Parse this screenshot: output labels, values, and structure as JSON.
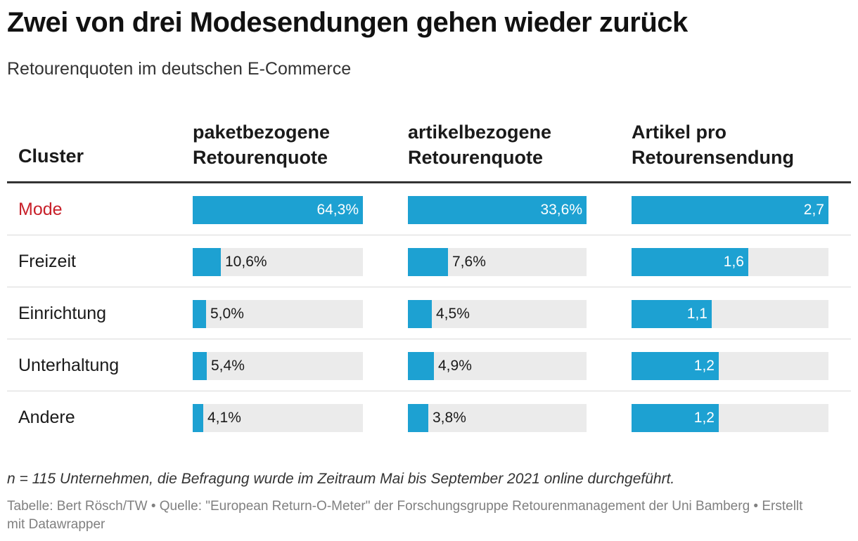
{
  "title": "Zwei von drei Modesendungen gehen wieder zurück",
  "subtitle": "Retourenquoten im deutschen E-Commerce",
  "chart_data": {
    "type": "table",
    "title": "Zwei von drei Modesendungen gehen wieder zurück",
    "subtitle": "Retourenquoten im deutschen E-Commerce",
    "row_header": "Cluster",
    "columns": [
      {
        "key": "paket",
        "label_line1": "paketbezogene",
        "label_line2": "Retourenquote",
        "max": 64.3
      },
      {
        "key": "artikel",
        "label_line1": "artikelbezogene",
        "label_line2": "Retourenquote",
        "max": 33.6
      },
      {
        "key": "pro",
        "label_line1": "Artikel pro",
        "label_line2": "Retourensendung",
        "max": 2.7
      }
    ],
    "rows": [
      {
        "cluster": "Mode",
        "highlight": true,
        "values": [
          64.3,
          33.6,
          2.7
        ],
        "labels": [
          "64,3%",
          "33,6%",
          "2,7"
        ]
      },
      {
        "cluster": "Freizeit",
        "highlight": false,
        "values": [
          10.6,
          7.6,
          1.6
        ],
        "labels": [
          "10,6%",
          "7,6%",
          "1,6"
        ]
      },
      {
        "cluster": "Einrichtung",
        "highlight": false,
        "values": [
          5.0,
          4.5,
          1.1
        ],
        "labels": [
          "5,0%",
          "4,5%",
          "1,1"
        ]
      },
      {
        "cluster": "Unterhaltung",
        "highlight": false,
        "values": [
          5.4,
          4.9,
          1.2
        ],
        "labels": [
          "5,4%",
          "4,9%",
          "1,2"
        ]
      },
      {
        "cluster": "Andere",
        "highlight": false,
        "values": [
          4.1,
          3.8,
          1.2
        ],
        "labels": [
          "4,1%",
          "3,8%",
          "1,2"
        ]
      }
    ]
  },
  "colors": {
    "bar": "#1da1d2",
    "highlight_text": "#c8202a"
  },
  "notes": "n = 115 Unternehmen, die Befragung wurde im Zeitraum Mai bis September 2021 online durchgeführt.",
  "source": "Tabelle: Bert Rösch/TW • Quelle: \"European Return-O-Meter\" der Forschungsgruppe Retourenmanagement der Uni Bamberg • Erstellt mit Datawrapper"
}
